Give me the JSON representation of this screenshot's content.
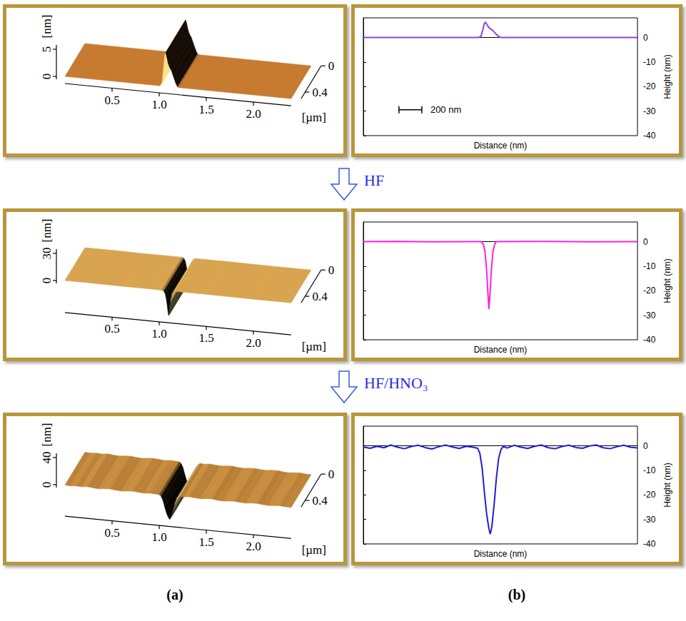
{
  "chart_data": [
    {
      "type": "line",
      "x_label": "Distance (nm)",
      "y_label": "Height (nm)",
      "xlim": [
        0,
        2400
      ],
      "ylim": [
        -40,
        8
      ],
      "yticks": [
        -40,
        -30,
        -20,
        -10,
        0
      ],
      "grid": false,
      "tick_labels": "y",
      "color": "#8e44d6",
      "x": [
        0,
        1010,
        1030,
        1045,
        1060,
        1068,
        1080,
        1095,
        1110,
        1130,
        1150,
        1175,
        1195,
        1210,
        2400
      ],
      "values": [
        0,
        0,
        0.5,
        3,
        5.8,
        6.2,
        5.5,
        4.3,
        3.6,
        3,
        2,
        0.8,
        0.1,
        0,
        0
      ],
      "scale_bar": {
        "length": 200,
        "label": "200 nm"
      }
    },
    {
      "type": "line",
      "x_label": "Distance (nm)",
      "y_label": "Height (nm)",
      "xlim": [
        0,
        2400
      ],
      "ylim": [
        -40,
        8
      ],
      "yticks": [
        -40,
        -30,
        -20,
        -10,
        0
      ],
      "grid": false,
      "tick_labels": "y",
      "color": "#ff22dd",
      "x": [
        0,
        300,
        600,
        900,
        1030,
        1050,
        1065,
        1080,
        1092,
        1100,
        1108,
        1120,
        1135,
        1150,
        1165,
        1500,
        2000,
        2400
      ],
      "values": [
        0,
        0.1,
        -0.1,
        0,
        0,
        -1,
        -4,
        -12,
        -22,
        -27.5,
        -22,
        -12,
        -4,
        -1,
        0,
        0.1,
        -0.1,
        0
      ]
    },
    {
      "type": "line",
      "x_label": "Distance (nm)",
      "y_label": "Height (nm)",
      "xlim": [
        0,
        2400
      ],
      "ylim": [
        -40,
        8
      ],
      "yticks": [
        -40,
        -30,
        -20,
        -10,
        0
      ],
      "grid": false,
      "tick_labels": "y",
      "color": "#1f1fd0",
      "x": [
        0,
        60,
        120,
        180,
        240,
        300,
        360,
        420,
        480,
        540,
        600,
        660,
        720,
        780,
        840,
        900,
        960,
        1000,
        1020,
        1040,
        1060,
        1080,
        1100,
        1111,
        1125,
        1145,
        1165,
        1185,
        1205,
        1225,
        1260,
        1320,
        1380,
        1440,
        1500,
        1560,
        1620,
        1680,
        1740,
        1800,
        1860,
        1920,
        1980,
        2040,
        2100,
        2160,
        2220,
        2280,
        2340,
        2400
      ],
      "values": [
        -0.5,
        -1,
        -0.2,
        -0.8,
        0.3,
        -0.6,
        -1.2,
        -0.3,
        0.2,
        -0.7,
        -1.3,
        -0.4,
        0.3,
        -0.5,
        -1.1,
        -0.2,
        -0.6,
        -1,
        -3,
        -9,
        -19,
        -28,
        -34,
        -36,
        -33,
        -24,
        -13,
        -5,
        -1.5,
        -0.3,
        -0.9,
        0.2,
        -0.6,
        -1.1,
        -0.2,
        0.3,
        -0.8,
        -1.2,
        -0.3,
        0.2,
        -0.7,
        -1,
        -0.1,
        0.3,
        -0.8,
        -1.2,
        -0.4,
        0.2,
        -0.6,
        -0.9
      ]
    }
  ],
  "surfaces": [
    {
      "x_label": "[µm]",
      "z_label": "[nm]",
      "xlim": [
        0,
        2.4
      ],
      "xticks": [
        0.5,
        {
          "value": 1,
          "label": "1.0"
        },
        1.5,
        {
          "value": 2,
          "label": "2.0"
        }
      ],
      "ylim": [
        0,
        0.5
      ],
      "yticks": [
        0,
        0.4
      ],
      "zticks": [
        0,
        5
      ]
    },
    {
      "x_label": "[µm]",
      "z_label": "[nm]",
      "xlim": [
        0,
        2.4
      ],
      "xticks": [
        0.5,
        {
          "value": 1,
          "label": "1.0"
        },
        1.5,
        {
          "value": 2,
          "label": "2.0"
        }
      ],
      "ylim": [
        0,
        0.5
      ],
      "yticks": [
        0,
        0.4
      ],
      "zticks": [
        0,
        30
      ]
    },
    {
      "x_label": "[µm]",
      "z_label": "[nm]",
      "xlim": [
        0,
        2.4
      ],
      "xticks": [
        0.5,
        {
          "value": 1,
          "label": "1.0"
        },
        1.5,
        {
          "value": 2,
          "label": "2.0"
        }
      ],
      "ylim": [
        0,
        0.5
      ],
      "yticks": [
        0,
        0.4
      ],
      "zticks": [
        0,
        40
      ]
    }
  ],
  "steps": [
    "HF",
    "HF/HNO₃"
  ],
  "panel_labels": [
    "(a)",
    "(b)"
  ]
}
